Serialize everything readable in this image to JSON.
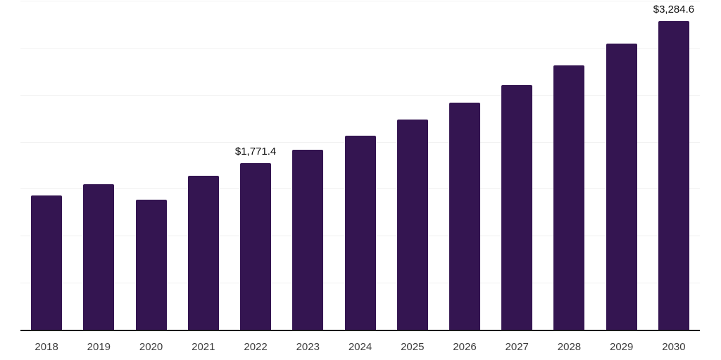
{
  "chart": {
    "background_color": "#ffffff",
    "bar_color": "#341551",
    "gridline_color": "#f1f1f1",
    "axis_line_color": "#1a1a1a",
    "tick_label_color": "#3d3d3d",
    "data_label_color": "#101010"
  },
  "chart_data": {
    "type": "bar",
    "title": "",
    "xlabel": "",
    "ylabel": "",
    "categories": [
      "2018",
      "2019",
      "2020",
      "2021",
      "2022",
      "2023",
      "2024",
      "2025",
      "2026",
      "2027",
      "2028",
      "2029",
      "2030"
    ],
    "values": [
      1428.0,
      1549.0,
      1384.0,
      1639.9,
      1771.4,
      1913.6,
      2067.2,
      2233.1,
      2412.3,
      2605.9,
      2815.1,
      3041.0,
      3284.6
    ],
    "data_labels": [
      "",
      "",
      "",
      "",
      "$1,771.4",
      "",
      "",
      "",
      "",
      "",
      "",
      "",
      "$3,284.6"
    ],
    "labeled_points": [
      {
        "category": "2022",
        "label": "$1,771.4",
        "value": 1771.4
      },
      {
        "category": "2030",
        "label": "$3,284.6",
        "value": 3284.6
      }
    ],
    "ylim": [
      0,
      3500
    ],
    "gridline_step": 500,
    "grid": true,
    "y_axis_tick_labels_visible": false,
    "legend_position": "none",
    "currency_prefix": "$"
  }
}
